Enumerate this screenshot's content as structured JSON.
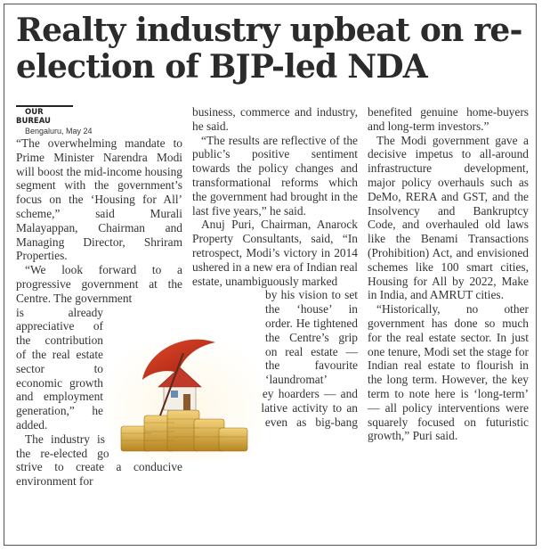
{
  "article": {
    "headline": "Realty industry upbeat on re-election of BJP-led NDA",
    "byline": "OUR BUREAU",
    "dateline": "Bengaluru, May 24",
    "col1": {
      "p1": "“The overwhelming mandate to Prime Minister Narendra Modi will boost the mid-income housing segment with the government’s focus on the ‘Housing for All’ scheme,” said Murali Malayappan, Chairman and Managing Director, Shriram Properties.",
      "p2a": "“We look forward to a progressive government at the Centre. The government",
      "p2b": "is already appreciative of the contribution of the real estate sector to economic growth and employment generation,” he added.",
      "p3": "The industry is confident that the re-elected government will strive to create a conducive environment for"
    },
    "col2": {
      "p1": "business, commerce and industry, he said.",
      "p2": "“The results are reflective of the public’s positive sentiment towards the policy changes and transformational reforms which the government had brought in the last five years,” he said.",
      "p3a": "Anuj Puri, Chairman, Anarock Property Consultants, said, “In retrospect, Modi’s victory in 2014 ushered in a new era of Indian real estate, unambiguously marked",
      "p3b": "by his vision to set the ‘house’ in order. He tightened the Centre’s grip on real estate — the favourite ‘laundromat’",
      "p3c": "for black money hoarders — and brought speculative activity to an all-time low even as big-bang schemes"
    },
    "col3": {
      "p1": "benefited genuine home-buyers and long-term investors.”",
      "p2": "The Modi government gave a decisive impetus to all-around infrastructure development, major policy overhauls such as DeMo, RERA and GST, and the Insolvency and Bankruptcy Code, and overhauled old laws like the Benami Transactions (Prohibition) Act, and envisioned schemes like 100 smart cities, Housing for All by 2022, Make in India, and AMRUT cities.",
      "p3": "“Historically, no other government has done so much for the real estate sector. In just one tenure, Modi set the stage for Indian real estate to flourish in the long term. However, the key term to note here is ‘long-term’ — all policy interventions were squarely focused on futuristic growth,” Puri said."
    },
    "photo_icon": "house-under-umbrella-on-coins-illustration"
  }
}
